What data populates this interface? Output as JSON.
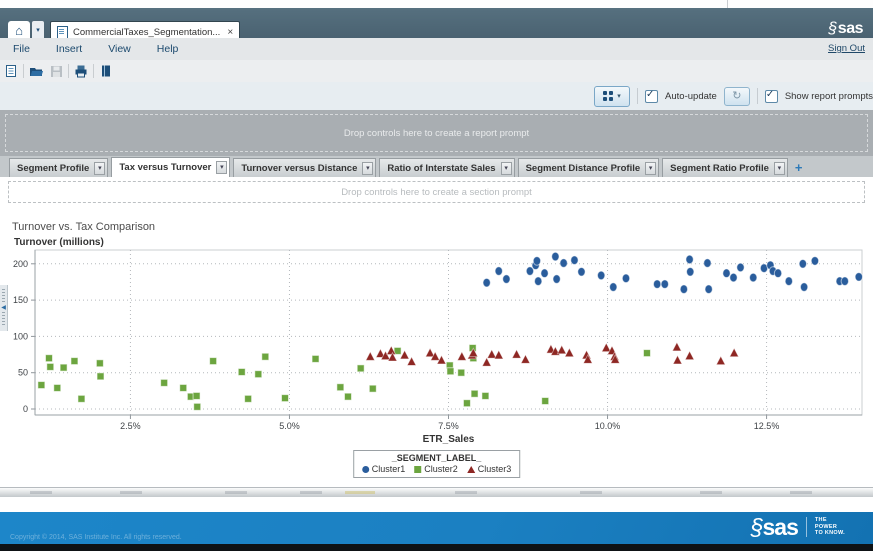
{
  "titlebar": {
    "tab_label": "CommercialTaxes_Segmentation...",
    "close_label": "×",
    "sas_logo": "sas"
  },
  "menubar": {
    "items": [
      "File",
      "Insert",
      "View",
      "Help"
    ],
    "sign_out_label": "Sign Out"
  },
  "toolbar": {
    "icons": [
      "new-report-icon",
      "open-icon",
      "save-icon",
      "print-icon",
      "export-icon"
    ]
  },
  "controls": {
    "auto_update_label": "Auto-update",
    "auto_update_checked": true,
    "show_report_prompts_label": "Show report prompts",
    "show_report_prompts_checked": true
  },
  "report_prompt": {
    "placeholder": "Drop controls here to create a report prompt"
  },
  "section_tabs": {
    "active_index": 1,
    "tabs": [
      "Segment Profile",
      "Tax versus Turnover",
      "Turnover versus Distance",
      "Ratio of Interstate Sales",
      "Segment Distance Profile",
      "Segment Ratio Profile"
    ],
    "add_tab_label": "+"
  },
  "section_prompt": {
    "placeholder": "Drop controls here to create a section prompt"
  },
  "chart_data": {
    "type": "scatter",
    "title": "Turnover vs. Tax Comparison",
    "ylabel": "Turnover (millions)",
    "xlabel": "ETR_Sales",
    "x_ticks": [
      "2.5%",
      "5.0%",
      "7.5%",
      "10.0%",
      "12.5%"
    ],
    "x_tick_values": [
      2.5,
      5.0,
      7.5,
      10.0,
      12.5
    ],
    "y_ticks": [
      0,
      50,
      100,
      150,
      200
    ],
    "xlim": [
      1.0,
      14.0
    ],
    "ylim": [
      0,
      219
    ],
    "grid": "dotted",
    "legend": {
      "title": "_SEGMENT_LABEL_",
      "position": "bottom-center"
    },
    "series": [
      {
        "name": "Cluster1",
        "marker": "circle",
        "color": "#2a5d9c",
        "points": [
          [
            8.1,
            174
          ],
          [
            8.29,
            190
          ],
          [
            8.41,
            179
          ],
          [
            8.78,
            190
          ],
          [
            8.87,
            198
          ],
          [
            8.89,
            204
          ],
          [
            8.91,
            176
          ],
          [
            9.01,
            187
          ],
          [
            9.18,
            210
          ],
          [
            9.2,
            179
          ],
          [
            9.31,
            201
          ],
          [
            9.48,
            205
          ],
          [
            9.59,
            189
          ],
          [
            9.9,
            184
          ],
          [
            10.09,
            168
          ],
          [
            10.29,
            180
          ],
          [
            10.78,
            172
          ],
          [
            10.9,
            172
          ],
          [
            11.2,
            165
          ],
          [
            11.29,
            206
          ],
          [
            11.3,
            189
          ],
          [
            11.57,
            201
          ],
          [
            11.59,
            165
          ],
          [
            11.87,
            187
          ],
          [
            11.98,
            181
          ],
          [
            12.09,
            195
          ],
          [
            12.29,
            181
          ],
          [
            12.46,
            194
          ],
          [
            12.56,
            198
          ],
          [
            12.6,
            190
          ],
          [
            12.68,
            187
          ],
          [
            12.85,
            176
          ],
          [
            13.07,
            200
          ],
          [
            13.09,
            168
          ],
          [
            13.26,
            204
          ],
          [
            13.65,
            176
          ],
          [
            13.73,
            176
          ],
          [
            13.95,
            182
          ]
        ]
      },
      {
        "name": "Cluster2",
        "marker": "square",
        "color": "#6ca53f",
        "points": [
          [
            1.1,
            33
          ],
          [
            1.22,
            70
          ],
          [
            1.24,
            58
          ],
          [
            1.35,
            29
          ],
          [
            1.45,
            57
          ],
          [
            1.62,
            66
          ],
          [
            1.73,
            14
          ],
          [
            2.02,
            63
          ],
          [
            2.03,
            45
          ],
          [
            3.03,
            36
          ],
          [
            3.33,
            29
          ],
          [
            3.45,
            17
          ],
          [
            3.54,
            18
          ],
          [
            3.55,
            3
          ],
          [
            3.8,
            66
          ],
          [
            4.25,
            51
          ],
          [
            4.35,
            14
          ],
          [
            4.51,
            48
          ],
          [
            4.62,
            72
          ],
          [
            4.93,
            15
          ],
          [
            5.41,
            69
          ],
          [
            5.8,
            30
          ],
          [
            5.92,
            17
          ],
          [
            6.12,
            56
          ],
          [
            6.31,
            28
          ],
          [
            6.7,
            80
          ],
          [
            7.52,
            60
          ],
          [
            7.53,
            52
          ],
          [
            7.7,
            50
          ],
          [
            7.79,
            8
          ],
          [
            7.88,
            84
          ],
          [
            7.89,
            70
          ],
          [
            7.91,
            21
          ],
          [
            8.08,
            18
          ],
          [
            9.02,
            11
          ],
          [
            10.62,
            77
          ]
        ]
      },
      {
        "name": "Cluster3",
        "marker": "triangle",
        "color": "#8e2723",
        "points": [
          [
            6.27,
            72
          ],
          [
            6.43,
            76
          ],
          [
            6.51,
            73
          ],
          [
            6.6,
            80
          ],
          [
            6.62,
            71
          ],
          [
            6.81,
            74
          ],
          [
            6.92,
            65
          ],
          [
            7.21,
            77
          ],
          [
            7.29,
            72
          ],
          [
            7.39,
            67
          ],
          [
            7.71,
            72
          ],
          [
            7.87,
            74
          ],
          [
            7.89,
            77
          ],
          [
            8.1,
            64
          ],
          [
            8.18,
            75
          ],
          [
            8.29,
            74
          ],
          [
            8.57,
            75
          ],
          [
            8.71,
            68
          ],
          [
            9.11,
            82
          ],
          [
            9.18,
            79
          ],
          [
            9.28,
            81
          ],
          [
            9.4,
            77
          ],
          [
            9.67,
            74
          ],
          [
            9.69,
            68
          ],
          [
            9.98,
            84
          ],
          [
            10.07,
            80
          ],
          [
            10.11,
            72
          ],
          [
            10.12,
            68
          ],
          [
            11.09,
            85
          ],
          [
            11.1,
            67
          ],
          [
            11.29,
            73
          ],
          [
            11.78,
            66
          ],
          [
            11.99,
            77
          ]
        ]
      }
    ]
  },
  "footer": {
    "copyright": "Copyright © 2014, SAS Institute Inc. All rights reserved.",
    "sas_logo": "sas",
    "tagline_lines": [
      "THE",
      "POWER",
      "TO KNOW."
    ]
  }
}
